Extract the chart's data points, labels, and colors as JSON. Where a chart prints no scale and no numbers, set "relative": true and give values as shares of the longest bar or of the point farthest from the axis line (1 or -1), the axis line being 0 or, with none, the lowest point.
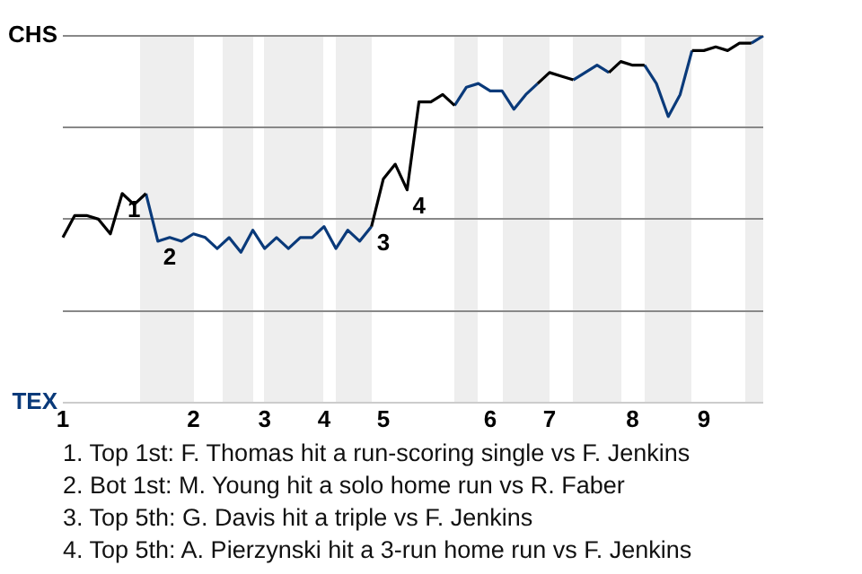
{
  "chart_data": {
    "type": "line",
    "relative": true,
    "categories": [
      "1",
      null,
      null,
      null,
      null,
      null,
      null,
      null,
      null,
      null,
      null,
      "2",
      null,
      null,
      null,
      null,
      null,
      "3",
      null,
      null,
      null,
      null,
      "4",
      null,
      null,
      null,
      null,
      "5",
      null,
      null,
      null,
      null,
      null,
      null,
      null,
      null,
      "6",
      null,
      null,
      null,
      null,
      "7",
      null,
      null,
      null,
      null,
      null,
      null,
      "8",
      null,
      null,
      null,
      null,
      null,
      "9",
      null,
      null,
      null,
      null,
      null
    ],
    "series": [
      {
        "color": "#000000",
        "values": [
          0.45,
          0.51,
          0.51,
          0.5,
          0.46,
          0.57,
          0.54,
          0.57,
          null,
          null,
          null,
          null,
          null,
          null,
          null,
          null,
          null,
          null,
          null,
          null,
          null,
          null,
          null,
          null,
          null,
          null,
          0.48,
          0.61,
          0.65,
          0.58,
          0.82,
          0.82,
          0.84,
          0.81,
          null,
          null,
          null,
          null,
          null,
          null,
          0.87,
          0.9,
          0.89,
          0.88,
          null,
          null,
          0.9,
          0.93,
          0.92,
          0.92,
          null,
          null,
          null,
          0.96,
          0.96,
          0.97,
          0.96,
          0.98,
          0.98,
          null
        ]
      },
      {
        "color": "#0a3a7a",
        "values": [
          null,
          null,
          null,
          null,
          null,
          null,
          null,
          0.57,
          0.44,
          0.45,
          0.44,
          0.46,
          0.45,
          0.42,
          0.45,
          0.41,
          0.47,
          0.42,
          0.45,
          0.42,
          0.45,
          0.45,
          0.48,
          0.42,
          0.47,
          0.44,
          0.48,
          null,
          null,
          null,
          null,
          null,
          null,
          0.81,
          0.86,
          0.87,
          0.85,
          0.85,
          0.8,
          0.84,
          0.87,
          null,
          null,
          0.88,
          0.9,
          0.92,
          0.9,
          null,
          null,
          0.92,
          0.87,
          0.78,
          0.84,
          0.96,
          null,
          null,
          null,
          null,
          0.98,
          1.0
        ]
      }
    ],
    "grid": "y",
    "marker": "none",
    "annotations": [
      "CHS",
      "TEX",
      "1",
      "2",
      "3",
      "4",
      "1. Top 1st: F. Thomas hit a run-scoring single vs F. Jenkins",
      "2. Bot 1st: M. Young hit a solo home run vs R. Faber",
      "3. Top 5th: G. Davis hit a triple vs F. Jenkins",
      "4. Top 5th: A. Pierzynski hit a 3-run home run vs F. Jenkins"
    ]
  }
}
